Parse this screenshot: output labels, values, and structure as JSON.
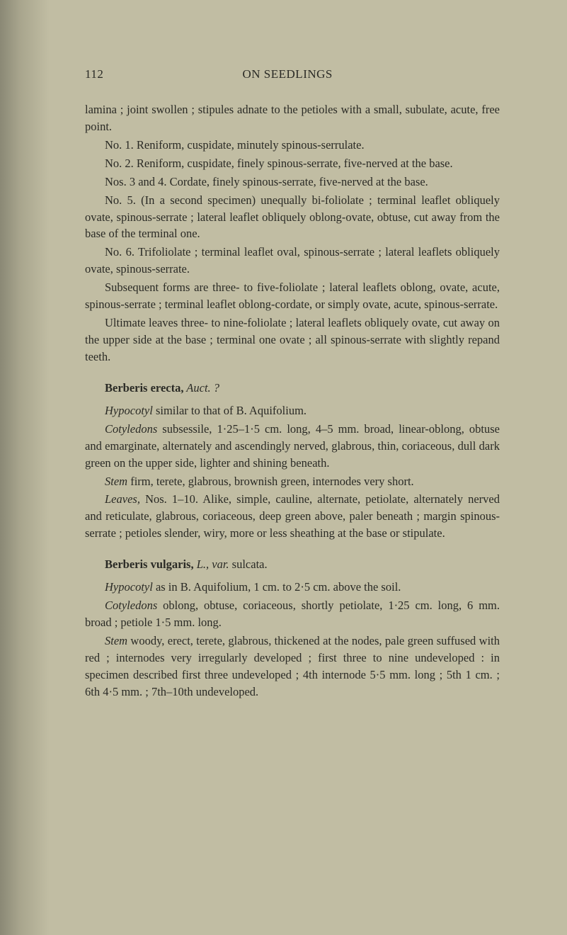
{
  "page_number": "112",
  "running_head": "ON SEEDLINGS",
  "colors": {
    "page_bg": "#c1bda3",
    "spine_shadow_dark": "#8a8875",
    "text": "#2a2a25"
  },
  "typography": {
    "body_fontsize_pt": 12,
    "header_fontsize_pt": 13,
    "line_height": 1.45,
    "font_family": "Georgia / Times-like old-style serif"
  },
  "paragraphs": [
    {
      "indent": false,
      "runs": [
        {
          "text": "lamina ; joint swollen ; stipules adnate to the petioles with a small, subulate, acute, free point."
        }
      ]
    },
    {
      "indent": true,
      "runs": [
        {
          "text": "No. 1. Reniform, cuspidate, minutely spinous-serrulate."
        }
      ]
    },
    {
      "indent": true,
      "runs": [
        {
          "text": "No. 2. Reniform, cuspidate, finely spinous-serrate, five-nerved at the base."
        }
      ]
    },
    {
      "indent": true,
      "runs": [
        {
          "text": "Nos. 3 and 4. Cordate, finely spinous-serrate, five-nerved at the base."
        }
      ]
    },
    {
      "indent": true,
      "runs": [
        {
          "text": "No. 5. (In a second specimen) unequally bi-foliolate ; terminal leaflet obliquely ovate, spinous-serrate ; lateral leaflet obliquely oblong-ovate, obtuse, cut away from the base of the terminal one."
        }
      ]
    },
    {
      "indent": true,
      "runs": [
        {
          "text": "No. 6. Trifoliolate ; terminal leaflet oval, spinous-serrate ; lateral leaflets obliquely ovate, spinous-serrate."
        }
      ]
    },
    {
      "indent": true,
      "runs": [
        {
          "text": "Subsequent forms are three- to five-foliolate ; lateral leaflets oblong, ovate, acute, spinous-serrate ; terminal leaflet oblong-cordate, or simply ovate, acute, spinous-serrate."
        }
      ]
    },
    {
      "indent": true,
      "runs": [
        {
          "text": "Ultimate leaves three- to nine-foliolate ; lateral leaflets obliquely ovate, cut away on the upper side at the base ; terminal one ovate ; all spinous-serrate with slightly repand teeth."
        }
      ]
    }
  ],
  "section1": {
    "head_bold": "Berberis erecta,",
    "head_ital": " Auct. ?",
    "paragraphs": [
      {
        "indent": true,
        "runs": [
          {
            "ital": true,
            "text": "Hypocotyl"
          },
          {
            "text": " similar to that of B. Aquifolium."
          }
        ]
      },
      {
        "indent": true,
        "runs": [
          {
            "ital": true,
            "text": "Cotyledons"
          },
          {
            "text": " subsessile, 1·25–1·5 cm. long, 4–5 mm. broad, linear-oblong, obtuse and emarginate, alternately and ascendingly nerved, glabrous, thin, coriaceous, dull dark green on the upper side, lighter and shining beneath."
          }
        ]
      },
      {
        "indent": true,
        "runs": [
          {
            "ital": true,
            "text": "Stem"
          },
          {
            "text": " firm, terete, glabrous, brownish green, internodes very short."
          }
        ]
      },
      {
        "indent": true,
        "runs": [
          {
            "ital": true,
            "text": "Leaves,"
          },
          {
            "text": " Nos. 1–10. Alike, simple, cauline, alternate, petiolate, alternately nerved and reticulate, glabrous, coriaceous, deep green above, paler beneath ; margin spinous-serrate ; petioles slender, wiry, more or less sheathing at the base or stipulate."
          }
        ]
      }
    ]
  },
  "section2": {
    "head_bold": "Berberis vulgaris,",
    "head_ital_a": " L., var.",
    "head_plain": " sulcata.",
    "paragraphs": [
      {
        "indent": true,
        "runs": [
          {
            "ital": true,
            "text": "Hypocotyl"
          },
          {
            "text": " as in B. Aquifolium, 1 cm. to 2·5 cm. above the soil."
          }
        ]
      },
      {
        "indent": true,
        "runs": [
          {
            "ital": true,
            "text": "Cotyledons"
          },
          {
            "text": " oblong, obtuse, coriaceous, shortly petiolate, 1·25 cm. long, 6 mm. broad ; petiole 1·5 mm. long."
          }
        ]
      },
      {
        "indent": true,
        "runs": [
          {
            "ital": true,
            "text": "Stem"
          },
          {
            "text": " woody, erect, terete, glabrous, thickened at the nodes, pale green suffused with red ; internodes very irregularly developed ; first three to nine undeveloped : in specimen described first three undeveloped ; 4th internode 5·5 mm. long ; 5th 1 cm. ; 6th 4·5 mm. ; 7th–10th undeveloped."
          }
        ]
      }
    ]
  }
}
